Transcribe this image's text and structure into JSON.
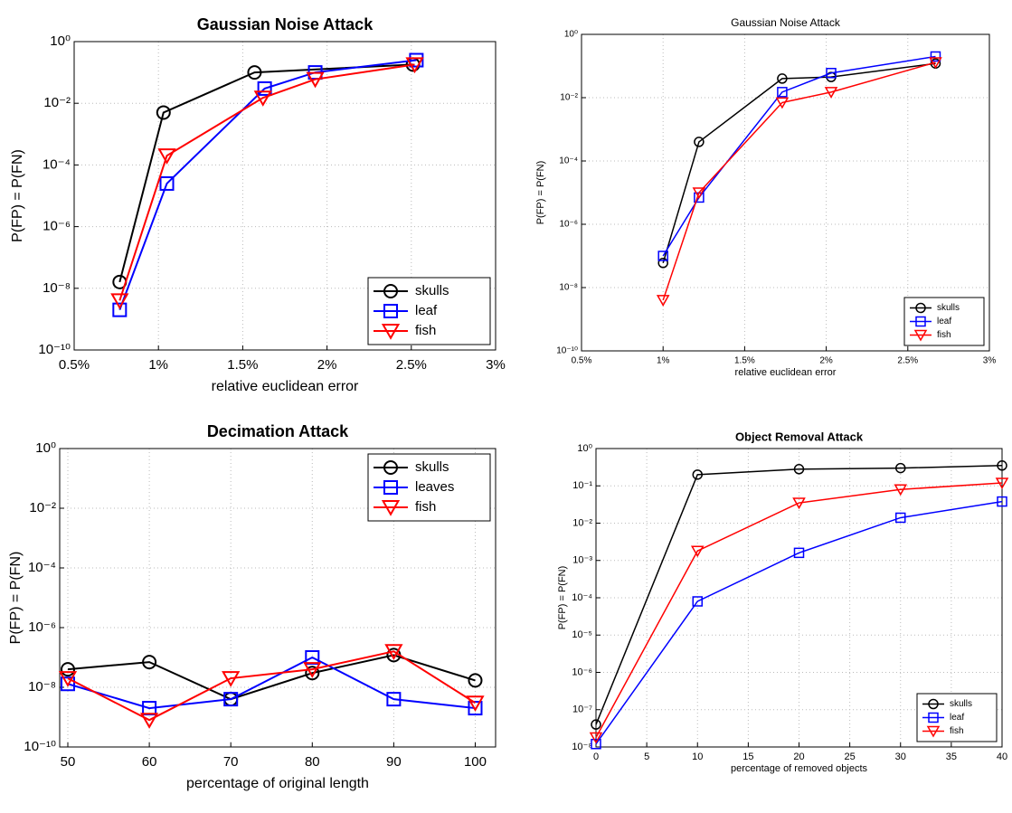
{
  "chart_data": [
    {
      "type": "line",
      "title": "Gaussian Noise Attack",
      "xlabel": "relative euclidean error",
      "ylabel": "P(FP) = P(FN)",
      "log_y": true,
      "grid": true,
      "legend": "lower right",
      "xlim": [
        0.5,
        3
      ],
      "ylim": [
        1e-10,
        1
      ],
      "xticks": [
        {
          "value": 0.5,
          "label": "0.5%"
        },
        {
          "value": 1,
          "label": "1%"
        },
        {
          "value": 1.5,
          "label": "1.5%"
        },
        {
          "value": 2,
          "label": "2%"
        },
        {
          "value": 2.5,
          "label": "2.5%"
        },
        {
          "value": 3,
          "label": "3%"
        }
      ],
      "yticks": [
        {
          "value": 1e-10,
          "label": "10⁻¹⁰"
        },
        {
          "value": 1e-08,
          "label": "10⁻⁸"
        },
        {
          "value": 1e-06,
          "label": "10⁻⁶"
        },
        {
          "value": 0.0001,
          "label": "10⁻⁴"
        },
        {
          "value": 0.01,
          "label": "10⁻²"
        },
        {
          "value": 1,
          "label": "10⁰"
        }
      ],
      "series": [
        {
          "name": "skulls",
          "color": "#000000",
          "marker": "o",
          "x": [
            0.77,
            1.03,
            1.57,
            2.51
          ],
          "values": [
            1.6e-08,
            0.005,
            0.1,
            0.18
          ]
        },
        {
          "name": "leaf",
          "color": "#0000ff",
          "marker": "s",
          "x": [
            0.77,
            1.05,
            1.63,
            1.93,
            2.53
          ],
          "values": [
            2e-09,
            2.5e-05,
            0.03,
            0.1,
            0.25
          ]
        },
        {
          "name": "fish",
          "color": "#ff0000",
          "marker": "v",
          "x": [
            0.77,
            1.05,
            1.62,
            1.93,
            2.52
          ],
          "values": [
            4e-09,
            0.0002,
            0.015,
            0.06,
            0.18
          ]
        }
      ]
    },
    {
      "type": "line",
      "title": "Gaussian Noise Attack",
      "xlabel": "relative euclidean error",
      "ylabel": "P(FP) = P(FN)",
      "log_y": true,
      "grid": true,
      "legend": "lower right",
      "xlim": [
        0.5,
        3
      ],
      "ylim": [
        1e-10,
        1
      ],
      "xticks": [
        {
          "value": 0.5,
          "label": "0.5%"
        },
        {
          "value": 1,
          "label": "1%"
        },
        {
          "value": 1.5,
          "label": "1.5%"
        },
        {
          "value": 2,
          "label": "2%"
        },
        {
          "value": 2.5,
          "label": "2.5%"
        },
        {
          "value": 3,
          "label": "3%"
        }
      ],
      "yticks": [
        {
          "value": 1e-10,
          "label": "10⁻¹⁰"
        },
        {
          "value": 1e-08,
          "label": "10⁻⁸"
        },
        {
          "value": 1e-06,
          "label": "10⁻⁶"
        },
        {
          "value": 0.0001,
          "label": "10⁻⁴"
        },
        {
          "value": 0.01,
          "label": "10⁻²"
        },
        {
          "value": 1,
          "label": "10⁰"
        }
      ],
      "series": [
        {
          "name": "skulls",
          "color": "#000000",
          "marker": "o",
          "x": [
            1.0,
            1.22,
            1.73,
            2.03,
            2.67
          ],
          "values": [
            6e-08,
            0.0004,
            0.04,
            0.045,
            0.12
          ]
        },
        {
          "name": "leaf",
          "color": "#0000ff",
          "marker": "s",
          "x": [
            1.0,
            1.22,
            1.73,
            2.03,
            2.67
          ],
          "values": [
            1e-07,
            7e-06,
            0.015,
            0.06,
            0.2
          ]
        },
        {
          "name": "fish",
          "color": "#ff0000",
          "marker": "v",
          "x": [
            1.0,
            1.22,
            1.73,
            2.03,
            2.67
          ],
          "values": [
            4e-09,
            1e-05,
            0.007,
            0.015,
            0.13
          ]
        }
      ]
    },
    {
      "type": "line",
      "title": "Decimation Attack",
      "xlabel": "percentage of original length",
      "ylabel": "P(FP) = P(FN)",
      "log_y": true,
      "grid": true,
      "legend": "upper right",
      "xlim": [
        49,
        102.5
      ],
      "ylim": [
        1e-10,
        1
      ],
      "xticks": [
        50,
        60,
        70,
        80,
        90,
        100
      ],
      "yticks": [
        {
          "value": 1e-10,
          "label": "10⁻¹⁰"
        },
        {
          "value": 1e-08,
          "label": "10⁻⁸"
        },
        {
          "value": 1e-06,
          "label": "10⁻⁶"
        },
        {
          "value": 0.0001,
          "label": "10⁻⁴"
        },
        {
          "value": 0.01,
          "label": "10⁻²"
        },
        {
          "value": 1,
          "label": "10⁰"
        }
      ],
      "x": [
        50,
        60,
        70,
        80,
        90,
        100
      ],
      "series": [
        {
          "name": "skulls",
          "color": "#000000",
          "marker": "o",
          "values": [
            4e-08,
            7e-08,
            4e-09,
            3e-08,
            1.2e-07,
            1.7e-08
          ]
        },
        {
          "name": "leaves",
          "color": "#0000ff",
          "marker": "s",
          "values": [
            1.3e-08,
            2e-09,
            4e-09,
            1e-07,
            4e-09,
            2e-09
          ]
        },
        {
          "name": "fish",
          "color": "#ff0000",
          "marker": "v",
          "values": [
            2e-08,
            8e-10,
            2e-08,
            4e-08,
            1.6e-07,
            3e-09
          ]
        }
      ]
    },
    {
      "type": "line",
      "title": "Object Removal Attack",
      "xlabel": "percentage of removed objects",
      "ylabel": "P(FP) = P(FN)",
      "log_y": true,
      "grid": true,
      "legend": "lower right",
      "xlim": [
        0,
        40
      ],
      "ylim": [
        1e-08,
        1
      ],
      "xticks": [
        0,
        5,
        10,
        15,
        20,
        25,
        30,
        35,
        40
      ],
      "yticks": [
        {
          "value": 1e-08,
          "label": "10⁻⁸"
        },
        {
          "value": 1e-07,
          "label": "10⁻⁷"
        },
        {
          "value": 1e-06,
          "label": "10⁻⁶"
        },
        {
          "value": 1e-05,
          "label": "10⁻⁵"
        },
        {
          "value": 0.0001,
          "label": "10⁻⁴"
        },
        {
          "value": 0.001,
          "label": "10⁻³"
        },
        {
          "value": 0.01,
          "label": "10⁻²"
        },
        {
          "value": 0.1,
          "label": "10⁻¹"
        },
        {
          "value": 1,
          "label": "10⁰"
        }
      ],
      "x": [
        0,
        10,
        20,
        30,
        40
      ],
      "series": [
        {
          "name": "skulls",
          "color": "#000000",
          "marker": "o",
          "values": [
            4e-08,
            0.2,
            0.28,
            0.3,
            0.35
          ]
        },
        {
          "name": "leaf",
          "color": "#0000ff",
          "marker": "s",
          "values": [
            1.2e-08,
            8e-05,
            0.0016,
            0.014,
            0.038
          ]
        },
        {
          "name": "fish",
          "color": "#ff0000",
          "marker": "v",
          "values": [
            1.8e-08,
            0.0018,
            0.035,
            0.08,
            0.12
          ]
        }
      ]
    }
  ]
}
